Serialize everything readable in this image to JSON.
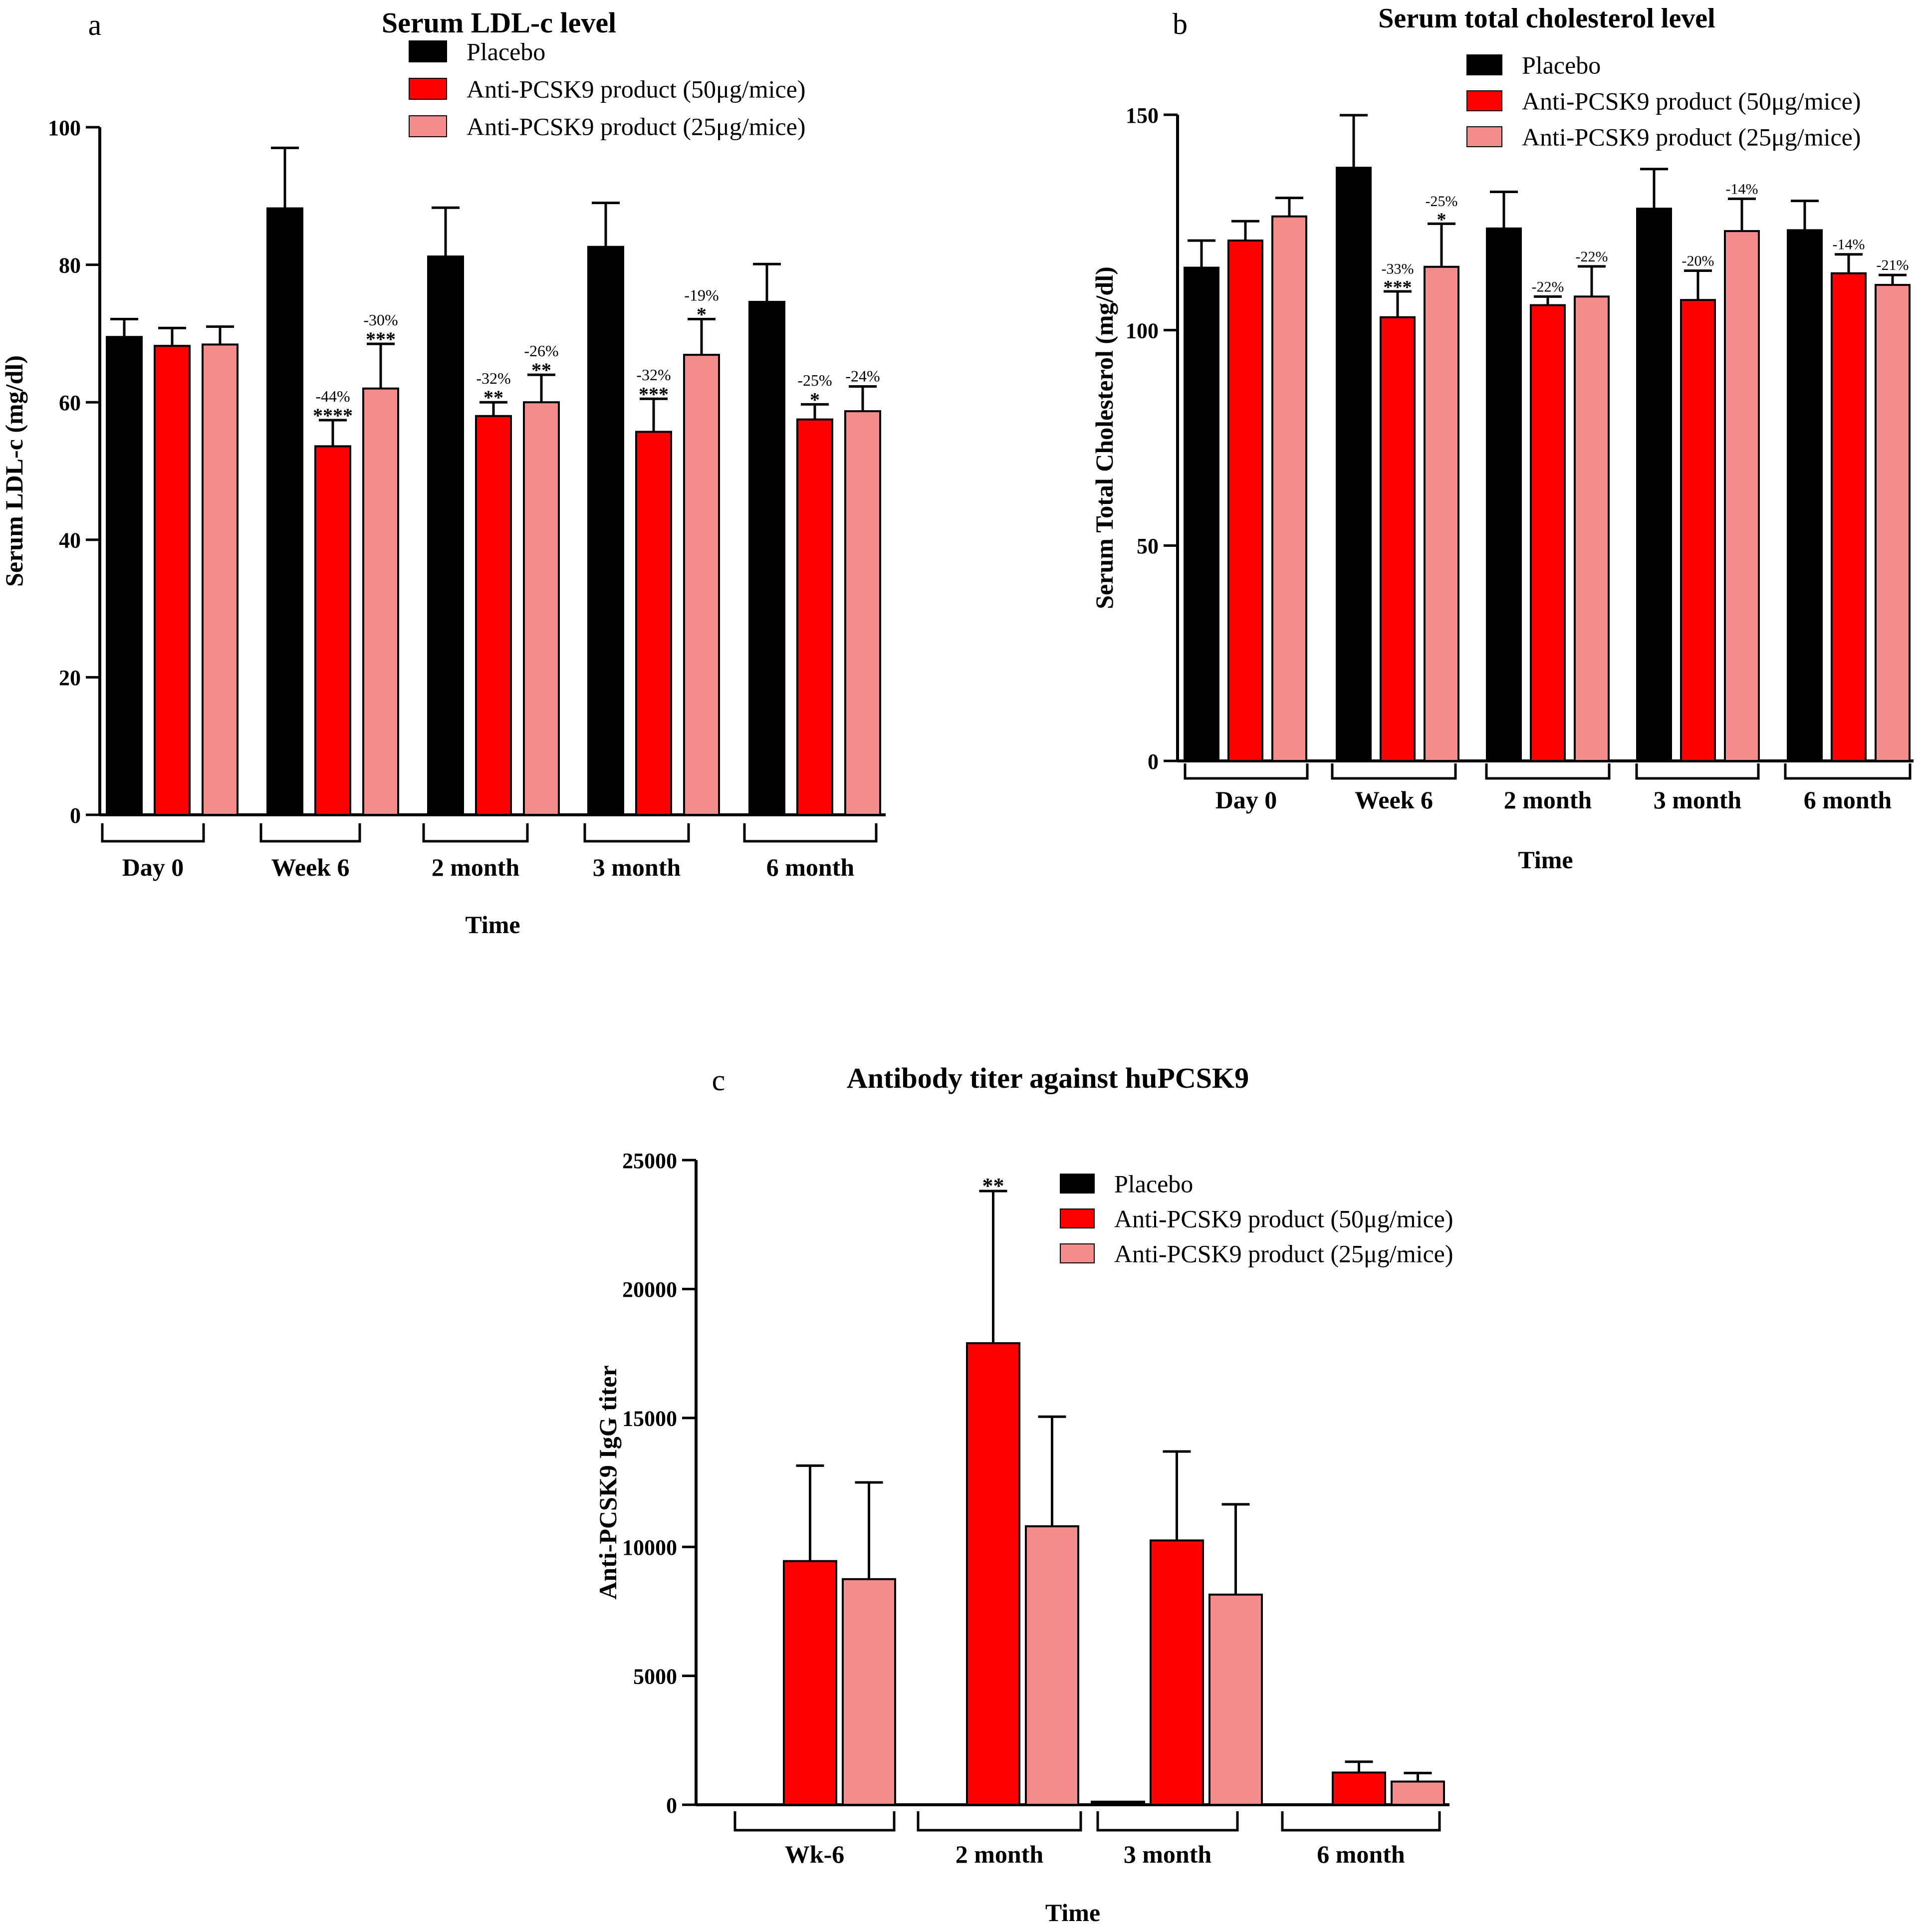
{
  "colors": {
    "placebo": "#000000",
    "dose50": "#ff0000",
    "dose25": "#f58c8c",
    "axis": "#000000"
  },
  "chart_data": [
    {
      "panel_letter": "a",
      "type": "bar",
      "title": "Serum LDL-c level",
      "xlabel": "Time",
      "ylabel": "Serum LDL-c (mg/dl)",
      "ylim": [
        0,
        100
      ],
      "yticks": [
        "0",
        "20",
        "40",
        "60",
        "80",
        "100"
      ],
      "legend_position": "top-right",
      "categories": [
        "Day 0",
        "Week 6",
        "2 month",
        "3 month",
        "6 month"
      ],
      "series": [
        {
          "name": "Placebo",
          "values": [
            69.5,
            88.2,
            81.2,
            82.6,
            74.6
          ],
          "errors": [
            2.6,
            8.8,
            7.1,
            6.4,
            5.5
          ],
          "pct": [
            "",
            "",
            "",
            "",
            ""
          ],
          "stars": [
            "",
            "",
            "",
            "",
            ""
          ]
        },
        {
          "name": "Anti-PCSK9 product (50μg/mice)",
          "values": [
            68.2,
            53.6,
            58.0,
            55.7,
            57.5
          ],
          "errors": [
            2.6,
            3.8,
            2.0,
            4.8,
            2.2
          ],
          "pct": [
            "",
            "-44%",
            "-32%",
            "-32%",
            "-25%"
          ],
          "stars": [
            "",
            "****",
            "**",
            "***",
            "*"
          ]
        },
        {
          "name": "Anti-PCSK9 product (25μg/mice)",
          "values": [
            68.4,
            62.0,
            60.0,
            66.9,
            58.7
          ],
          "errors": [
            2.6,
            6.5,
            4.0,
            5.2,
            3.6
          ],
          "pct": [
            "",
            "-30%",
            "-26%",
            "-19%",
            "-24%"
          ],
          "stars": [
            "",
            "***",
            "**",
            "*",
            ""
          ]
        }
      ]
    },
    {
      "panel_letter": "b",
      "type": "bar",
      "title": "Serum total cholesterol level",
      "xlabel": "Time",
      "ylabel": "Serum Total Cholesterol (mg/dl)",
      "ylim": [
        0,
        150
      ],
      "yticks": [
        "0",
        "50",
        "100",
        "150"
      ],
      "legend_position": "top-right",
      "categories": [
        "Day 0",
        "Week 6",
        "2 month",
        "3 month",
        "6 month"
      ],
      "series": [
        {
          "name": "Placebo",
          "values": [
            114.5,
            137.7,
            123.6,
            128.2,
            123.2
          ],
          "errors": [
            6.3,
            12.2,
            8.5,
            9.2,
            6.8
          ],
          "pct": [
            "",
            "",
            "",
            "",
            ""
          ],
          "stars": [
            "",
            "",
            "",
            "",
            ""
          ]
        },
        {
          "name": "Anti-PCSK9 product (50μg/mice)",
          "values": [
            120.8,
            103.0,
            105.8,
            107.0,
            113.2
          ],
          "errors": [
            4.5,
            6.0,
            2.0,
            6.8,
            4.4
          ],
          "pct": [
            "",
            "-33%",
            "-22%",
            "-20%",
            "-14%"
          ],
          "stars": [
            "",
            "***",
            "",
            "",
            ""
          ]
        },
        {
          "name": "Anti-PCSK9 product (25μg/mice)",
          "values": [
            126.4,
            114.7,
            107.8,
            123.0,
            110.5
          ],
          "errors": [
            4.3,
            10.0,
            7.0,
            7.5,
            2.3
          ],
          "pct": [
            "",
            "-25%",
            "-22%",
            "-14%",
            "-21%"
          ],
          "stars": [
            "",
            "*",
            "",
            "",
            ""
          ]
        }
      ]
    },
    {
      "panel_letter": "c",
      "type": "bar",
      "title": "Antibody titer against huPCSK9",
      "xlabel": "Time",
      "ylabel": "Anti-PCSK9 IgG  titer",
      "ylim": [
        0,
        25000
      ],
      "yticks": [
        "0",
        "5000",
        "10000",
        "15000",
        "20000",
        "25000"
      ],
      "legend_position": "top-right",
      "categories": [
        "Wk-6",
        "2 month",
        "3 month",
        "6 month"
      ],
      "series": [
        {
          "name": "Placebo",
          "values": [
            0,
            0,
            120,
            0
          ],
          "errors": [
            0,
            0,
            0,
            0
          ],
          "pct": [
            "",
            "",
            "",
            ""
          ],
          "stars": [
            "",
            "",
            "",
            ""
          ]
        },
        {
          "name": "Anti-PCSK9 product (50μg/mice)",
          "values": [
            9450,
            17900,
            10250,
            1250
          ],
          "errors": [
            3700,
            5900,
            3450,
            420
          ],
          "pct": [
            "",
            "",
            "",
            ""
          ],
          "stars": [
            "",
            "**",
            "",
            ""
          ]
        },
        {
          "name": "Anti-PCSK9 product (25μg/mice)",
          "values": [
            8750,
            10800,
            8150,
            900
          ],
          "errors": [
            3750,
            4250,
            3500,
            330
          ],
          "pct": [
            "",
            "",
            "",
            ""
          ],
          "stars": [
            "",
            "",
            "",
            ""
          ]
        }
      ]
    }
  ]
}
